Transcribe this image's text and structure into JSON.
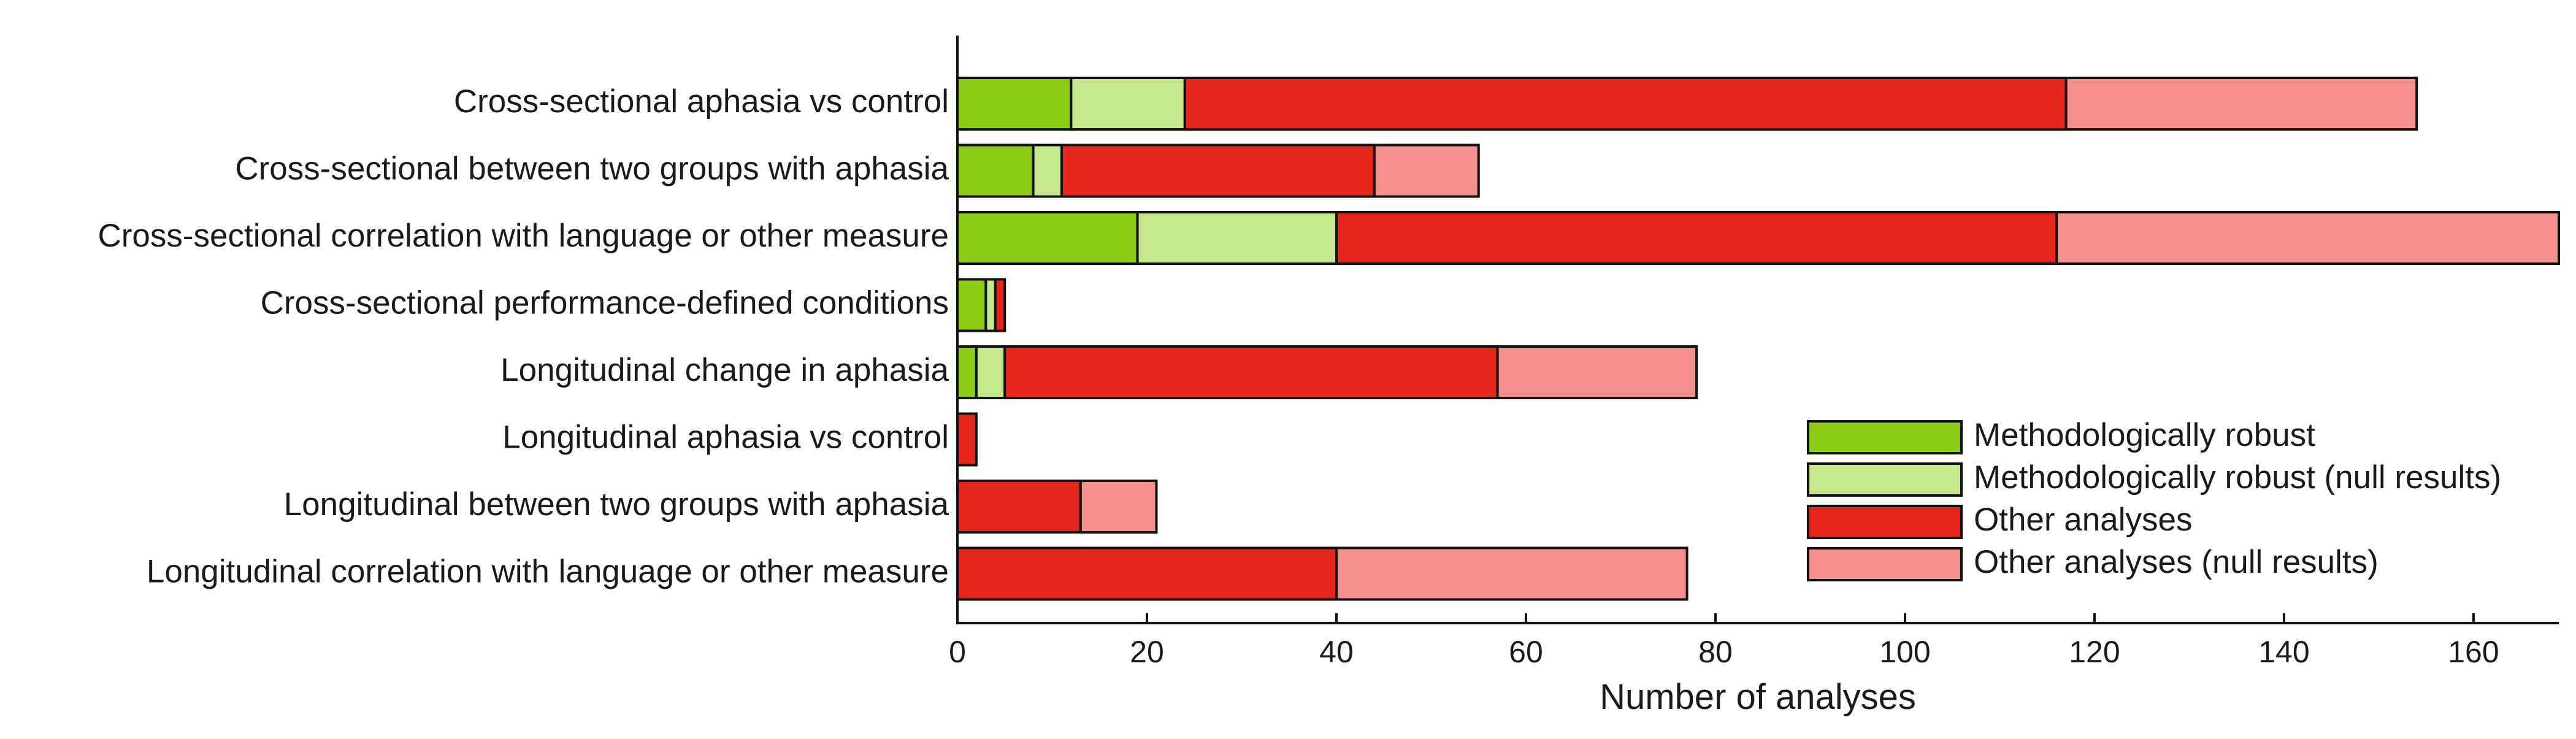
{
  "chart_data": {
    "type": "bar",
    "orientation": "horizontal",
    "stacked": true,
    "title": "",
    "xlabel": "Number of analyses",
    "ylabel": "",
    "xlim": [
      0,
      169
    ],
    "xticks": [
      0,
      20,
      40,
      60,
      80,
      100,
      120,
      140,
      160
    ],
    "grid": false,
    "legend_position": "bottom-right",
    "categories": [
      "Cross-sectional aphasia vs control",
      "Cross-sectional between two groups with aphasia",
      "Cross-sectional correlation with language or other measure",
      "Cross-sectional performance-defined conditions",
      "Longitudinal change in aphasia",
      "Longitudinal aphasia vs control",
      "Longitudinal between two groups with aphasia",
      "Longitudinal correlation with language or other measure"
    ],
    "series": [
      {
        "name": "Methodologically robust",
        "color": "#8ccc16",
        "values": [
          12,
          8,
          19,
          3,
          2,
          0,
          0,
          0
        ]
      },
      {
        "name": "Methodologically robust (null results)",
        "color": "#c6e68a",
        "values": [
          12,
          3,
          21,
          1,
          3,
          0,
          0,
          0
        ]
      },
      {
        "name": "Other analyses",
        "color": "#e5271b",
        "values": [
          93,
          33,
          76,
          1,
          52,
          2,
          13,
          40
        ]
      },
      {
        "name": "Other analyses (null results)",
        "color": "#f3908a",
        "values": [
          37,
          11,
          53,
          0,
          21,
          0,
          8,
          37
        ]
      }
    ]
  }
}
